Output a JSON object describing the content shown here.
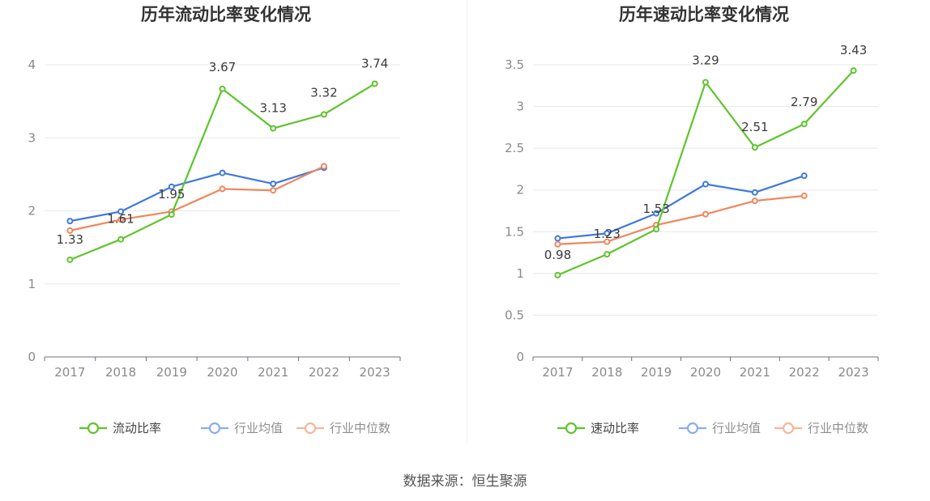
{
  "source": "数据来源：恒生聚源",
  "colors": {
    "company": "#5ec42b",
    "industry_avg": "#3f78e0",
    "industry_median": "#f0865e"
  },
  "chart_data": [
    {
      "type": "line",
      "title": "历年流动比率变化情况",
      "categories": [
        "2017",
        "2018",
        "2019",
        "2020",
        "2021",
        "2022",
        "2023"
      ],
      "ylim": [
        0,
        4
      ],
      "yticks": [
        0,
        1,
        2,
        3,
        4
      ],
      "ytick_labels": [
        "0",
        "1",
        "2",
        "3",
        "4"
      ],
      "grid": true,
      "legend_position": "bottom",
      "series": [
        {
          "name": "流动比率",
          "key": "company",
          "values": [
            1.33,
            1.61,
            1.95,
            3.67,
            3.13,
            3.32,
            3.74
          ],
          "labels": [
            "1.33",
            "1.61",
            "1.95",
            "3.67",
            "3.13",
            "3.32",
            "3.74"
          ]
        },
        {
          "name": "行业均值",
          "key": "industry_avg",
          "values": [
            1.86,
            1.99,
            2.33,
            2.52,
            2.37,
            2.59,
            null
          ]
        },
        {
          "name": "行业中位数",
          "key": "industry_median",
          "values": [
            1.73,
            1.88,
            1.99,
            2.3,
            2.28,
            2.61,
            null
          ]
        }
      ]
    },
    {
      "type": "line",
      "title": "历年速动比率变化情况",
      "categories": [
        "2017",
        "2018",
        "2019",
        "2020",
        "2021",
        "2022",
        "2023"
      ],
      "ylim": [
        0,
        3.5
      ],
      "yticks": [
        0,
        0.5,
        1,
        1.5,
        2,
        2.5,
        3,
        3.5
      ],
      "ytick_labels": [
        "0",
        "0.5",
        "1",
        "1.5",
        "2",
        "2.5",
        "3",
        "3.5"
      ],
      "grid": true,
      "legend_position": "bottom",
      "series": [
        {
          "name": "速动比率",
          "key": "company",
          "values": [
            0.98,
            1.23,
            1.53,
            3.29,
            2.51,
            2.79,
            3.43
          ],
          "labels": [
            "0.98",
            "1.23",
            "1.53",
            "3.29",
            "2.51",
            "2.79",
            "3.43"
          ]
        },
        {
          "name": "行业均值",
          "key": "industry_avg",
          "values": [
            1.42,
            1.48,
            1.72,
            2.07,
            1.97,
            2.17,
            null
          ]
        },
        {
          "name": "行业中位数",
          "key": "industry_median",
          "values": [
            1.35,
            1.38,
            1.58,
            1.71,
            1.87,
            1.93,
            null
          ]
        }
      ]
    }
  ]
}
